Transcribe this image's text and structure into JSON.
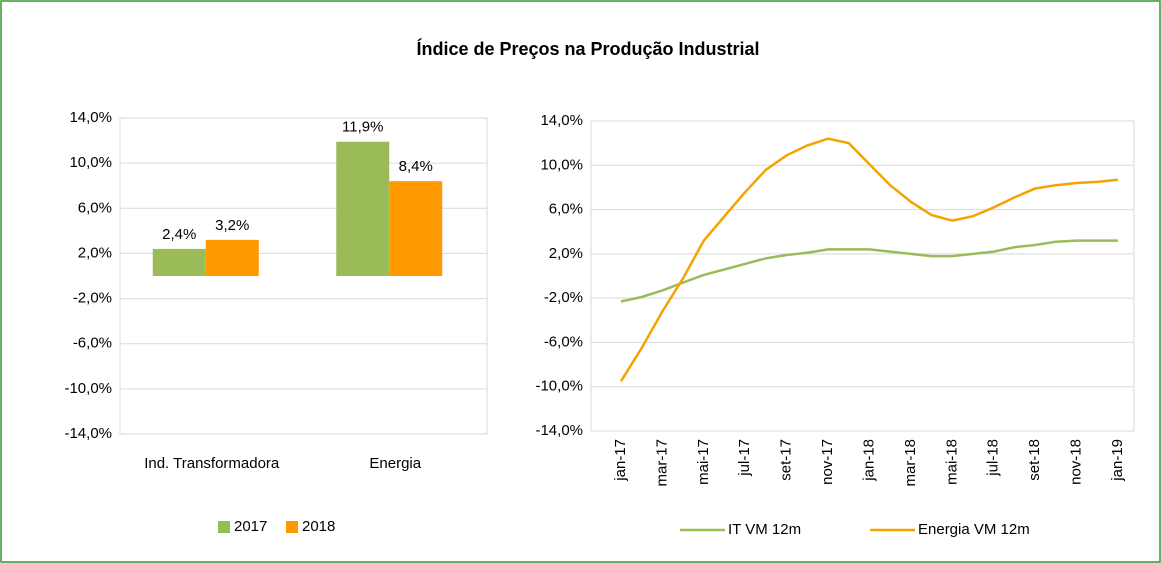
{
  "title": "Índice de Preços na Produção Industrial",
  "chart_data": [
    {
      "type": "bar",
      "categories": [
        "Ind. Transformadora",
        "Energia"
      ],
      "series": [
        {
          "name": "2017",
          "color": "#9bbb59",
          "values": [
            2.4,
            11.9
          ],
          "value_labels": [
            "2,4%",
            "11,9%"
          ]
        },
        {
          "name": "2018",
          "color": "#ff9900",
          "values": [
            3.2,
            8.4
          ],
          "value_labels": [
            "3,2%",
            "8,4%"
          ]
        }
      ],
      "ylim": [
        -14,
        14
      ],
      "yticks": [
        {
          "value": -14,
          "label": "-14,0%"
        },
        {
          "value": -10,
          "label": "-10,0%"
        },
        {
          "value": -6,
          "label": "-6,0%"
        },
        {
          "value": -2,
          "label": "-2,0%"
        },
        {
          "value": 2,
          "label": "2,0%"
        },
        {
          "value": 6,
          "label": "6,0%"
        },
        {
          "value": 10,
          "label": "10,0%"
        },
        {
          "value": 14,
          "label": "14,0%"
        }
      ],
      "grid": true,
      "legend": "bottom"
    },
    {
      "type": "line",
      "categories": [
        "jan-17",
        null,
        "mar-17",
        null,
        "mai-17",
        null,
        "jul-17",
        null,
        "set-17",
        null,
        "nov-17",
        null,
        "jan-18",
        null,
        "mar-18",
        null,
        "mai-18",
        null,
        "jul-18",
        null,
        "set-18",
        null,
        "nov-18",
        null,
        "jan-19"
      ],
      "series": [
        {
          "name": "IT VM 12m",
          "color": "#9bbb59",
          "values": [
            -2.3,
            -1.9,
            -1.3,
            -0.6,
            0.1,
            0.6,
            1.1,
            1.6,
            1.9,
            2.1,
            2.4,
            2.4,
            2.4,
            2.2,
            2.0,
            1.8,
            1.8,
            2.0,
            2.2,
            2.6,
            2.8,
            3.1,
            3.2,
            3.2,
            3.2
          ]
        },
        {
          "name": "Energia VM 12m",
          "color": "#f4a300",
          "values": [
            -9.5,
            -6.5,
            -3.2,
            -0.2,
            3.2,
            5.4,
            7.6,
            9.6,
            10.9,
            11.8,
            12.4,
            12.0,
            10.1,
            8.2,
            6.7,
            5.5,
            5.0,
            5.4,
            6.2,
            7.1,
            7.9,
            8.2,
            8.4,
            8.5,
            8.7
          ]
        }
      ],
      "ylim": [
        -14,
        14
      ],
      "yticks": [
        {
          "value": -14,
          "label": "-14,0%"
        },
        {
          "value": -10,
          "label": "-10,0%"
        },
        {
          "value": -6,
          "label": "-6,0%"
        },
        {
          "value": -2,
          "label": "-2,0%"
        },
        {
          "value": 2,
          "label": "2,0%"
        },
        {
          "value": 6,
          "label": "6,0%"
        },
        {
          "value": 10,
          "label": "10,0%"
        },
        {
          "value": 14,
          "label": "14,0%"
        }
      ],
      "grid": true,
      "legend": "bottom"
    }
  ]
}
